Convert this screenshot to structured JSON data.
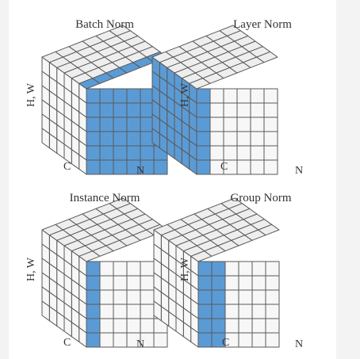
{
  "colors": {
    "highlight": "#5b9bd5",
    "cell_front": "#f7f7f7",
    "cell_top": "#eeeeee",
    "cell_side": "#e7e7e7",
    "grid_line": "#5a5a5a",
    "text": "#333333",
    "panel_bg": "#f3f3f3"
  },
  "cubes": [
    {
      "id": "batch-norm",
      "title": "Batch Norm",
      "ylabel": "H, W",
      "clabel": "C",
      "nlabel": "N",
      "highlight": "batch"
    },
    {
      "id": "layer-norm",
      "title": "Layer Norm",
      "ylabel": "H, W",
      "clabel": "C",
      "nlabel": "N",
      "highlight": "layer"
    },
    {
      "id": "instance-norm",
      "title": "Instance Norm",
      "ylabel": "H, W",
      "clabel": "C",
      "nlabel": "N",
      "highlight": "instance"
    },
    {
      "id": "group-norm",
      "title": "Group Norm",
      "ylabel": "H, W",
      "clabel": "C",
      "nlabel": "N",
      "highlight": "group"
    }
  ]
}
